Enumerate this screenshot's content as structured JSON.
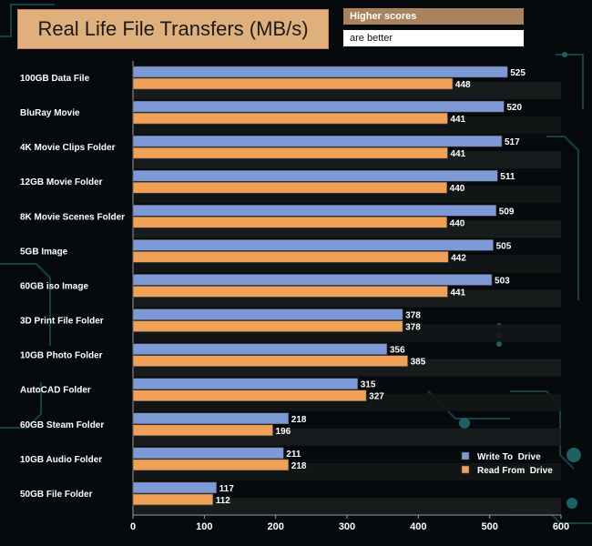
{
  "header": {
    "title": "Real Life File Transfers (MB/s)",
    "note_line1": "Higher scores",
    "note_line2": "are better"
  },
  "chart_data": {
    "type": "bar",
    "orientation": "horizontal",
    "title": "Real Life File Transfers (MB/s)",
    "xlabel": "",
    "ylabel": "",
    "xlim": [
      0,
      600
    ],
    "xticks": [
      0,
      100,
      200,
      300,
      400,
      500,
      600
    ],
    "grid": false,
    "legend_position": "bottom-right",
    "categories": [
      "100GB Data File",
      "BluRay Movie",
      "4K Movie Clips Folder",
      "12GB Movie Folder",
      "8K Movie Scenes Folder",
      "5GB Image",
      "60GB iso Image",
      "3D Print File Folder",
      "10GB Photo Folder",
      "AutoCAD Folder",
      "60GB Steam Folder",
      "10GB Audio Folder",
      "50GB File Folder"
    ],
    "series": [
      {
        "name": "Write To  Drive",
        "color": "#7e9ad6",
        "values": [
          525,
          520,
          517,
          511,
          509,
          505,
          503,
          378,
          356,
          315,
          218,
          211,
          117
        ]
      },
      {
        "name": "Read From  Drive",
        "color": "#f0a057",
        "values": [
          448,
          441,
          441,
          440,
          440,
          442,
          441,
          378,
          385,
          327,
          196,
          218,
          112
        ]
      }
    ]
  }
}
